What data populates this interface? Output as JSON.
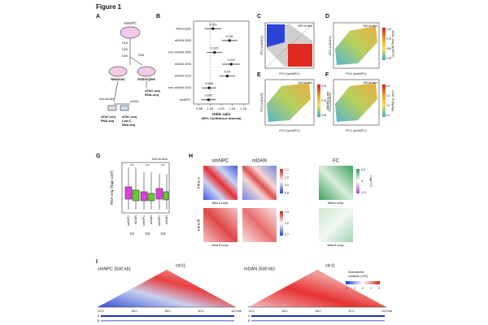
{
  "figure_title": "Figure 1",
  "panel_a": {
    "letter": "A",
    "smnpc": "smNPC",
    "d15": "D15",
    "d30": "D30",
    "d50": "D50",
    "d65": "D65",
    "neurons": "Neurons",
    "astrocytes": "Astrocytes",
    "astro_assay": [
      "ATAC-seq",
      "RNA-seq"
    ],
    "mdan": "mDAN",
    "non_mdan": "non-mDAN",
    "assay_left": [
      "ATAC-seq",
      "RNA-seq"
    ],
    "assay_right": [
      "ATAC-seq",
      "Low-C",
      "RNA-seq"
    ]
  },
  "panel_b": {
    "letter": "B",
    "type": "forest",
    "categories": [
      "Astrocytes",
      "mDAN D50",
      "non-mDAN D50",
      "mDAN D30",
      "mDAN D15",
      "non-mDAN D15",
      "smNPC"
    ],
    "values": [
      1.005,
      1.035,
      1.008,
      1.038,
      1.031,
      0.998,
      0.997
    ],
    "ci_low": [
      0.99,
      1.021,
      0.994,
      1.022,
      1.017,
      0.985,
      0.984
    ],
    "ci_high": [
      1.02,
      1.049,
      1.022,
      1.054,
      1.045,
      1.011,
      1.01
    ],
    "p_values": [
      0.553,
      0.031,
      0.322,
      0.022,
      0.04,
      0.608,
      0.637
    ],
    "xlim": [
      0.97,
      1.07
    ],
    "xticks": [
      0.98,
      {
        "value": 1,
        "label": "1.00"
      },
      1.02,
      1.04,
      1.06
    ],
    "xlabel": [
      "Odds ratio",
      "(95% Confidence Interval)"
    ]
  },
  "panel_c": {
    "letter": "C",
    "bins": "500 kb bins",
    "ylabel": "PC1 (mDAN)",
    "xlabel": "PC1 (smNPC)"
  },
  "panel_d": {
    "letter": "D",
    "bins": "500 kb bins",
    "ylabel": "PC1 (mDAN)",
    "xlabel": "PC1 (smNPC)",
    "colorbar_label": "ATAC-seq (smNPC)",
    "colorbar_ticks": [
      "1.00",
      "0.75",
      "0.50",
      "0.25"
    ]
  },
  "panel_e": {
    "letter": "E",
    "bins": "500 kb bins",
    "ylabel": "PC1 (mDAN)",
    "xlabel": "PC1 (smNPC)",
    "colorbar_label": "Alu % (bp/bp)",
    "colorbar_ticks": [
      "0.15",
      "0.10",
      "0.05"
    ]
  },
  "panel_f": {
    "letter": "F",
    "bins": "500 kb bins",
    "ylabel": "PC1 (mDAN)",
    "xlabel": "PC1 (smNPC)",
    "colorbar_label": "LINE % (bp/bp)",
    "colorbar_ticks": [
      "0.4",
      "0.3",
      "0.2",
      "0.1"
    ]
  },
  "panel_g": {
    "letter": "G",
    "bins": "500 kb bins",
    "ylabel": "RNA-seq (Tags x10³)",
    "samples": [
      "smNPC",
      "mDAN",
      "smNPC",
      "mDAN",
      "smNPC",
      "mDAN"
    ],
    "groups": [
      "G1",
      "G2",
      "G3"
    ],
    "significance": [
      "n.s.",
      "n.s.",
      "n.s."
    ]
  },
  "panel_h": {
    "letter": "H",
    "columns": [
      "smNPC",
      "mDAN",
      "FC"
    ],
    "rows": [
      "Intra-A",
      "Intra-B"
    ],
    "axis_a": "Meta A comp.",
    "axis_b": "Meta B comp.",
    "colorbar_a": [
      "1.1",
      "1.0",
      "0.9",
      "0.8"
    ],
    "colorbar_b": [
      "1.3",
      "1.0",
      "0.7"
    ],
    "colorbar_fc": [
      "0.2",
      "0",
      "-0.2"
    ],
    "fc_label": "Log2 FC"
  },
  "panel_i": {
    "letter": "I",
    "titles": [
      "smNPC (500 kb)",
      "mDAN (500 kb)"
    ],
    "chromosome": "chr11",
    "colorbar_label": [
      "Normalized",
      "contacts (O/E)"
    ],
    "colorbar_ticks": [
      "-2",
      "-1",
      "0",
      "1",
      "2"
    ],
    "positions": [
      "32.5",
      "36.0",
      "38.0",
      "40.0",
      "44.5"
    ],
    "unit": "mb",
    "tracks": [
      "A",
      "B"
    ]
  }
}
